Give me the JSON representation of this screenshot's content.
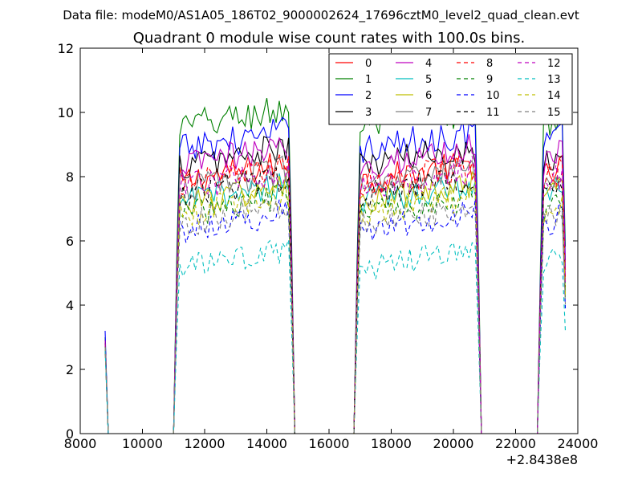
{
  "header": {
    "suptitle": "Data file: modeM0/AS1A05_186T02_9000002624_17696cztM0_level2_quad_clean.evt"
  },
  "chart_data": {
    "type": "line",
    "title": "Quadrant 0 module wise count rates with 100.0s bins.",
    "xlabel": "",
    "ylabel": "",
    "x_offset_label": "+2.8438e8",
    "xlim": [
      8000,
      24000
    ],
    "ylim": [
      0,
      12
    ],
    "xticks": [
      8000,
      10000,
      12000,
      14000,
      16000,
      18000,
      20000,
      22000,
      24000
    ],
    "xtick_labels": [
      "8000",
      "10000",
      "12000",
      "14000",
      "16000",
      "18000",
      "20000",
      "22000",
      "24000"
    ],
    "yticks": [
      0,
      2,
      4,
      6,
      8,
      10,
      12
    ],
    "ytick_labels": [
      "0",
      "2",
      "4",
      "6",
      "8",
      "10",
      "12"
    ],
    "grid": false,
    "legend": {
      "placement": "top-right",
      "columns": 4
    },
    "bin_width": 100,
    "orbit_segments": [
      {
        "start": 11100,
        "end": 14800
      },
      {
        "start": 16900,
        "end": 20800
      },
      {
        "start": 22800,
        "end": 23600
      }
    ],
    "initial_point": {
      "x": 8800
    },
    "series": [
      {
        "name": "0",
        "color": "#ff0000",
        "style": "solid",
        "level": 8.0,
        "first_value": 2.9
      },
      {
        "name": "1",
        "color": "#008000",
        "style": "solid",
        "level": 9.7,
        "first_value": 3.0
      },
      {
        "name": "2",
        "color": "#0000ff",
        "style": "solid",
        "level": 9.0,
        "first_value": 3.2
      },
      {
        "name": "3",
        "color": "#000000",
        "style": "solid",
        "level": 8.5,
        "first_value": 2.9
      },
      {
        "name": "4",
        "color": "#bf00bf",
        "style": "solid",
        "level": 8.5,
        "first_value": 2.9
      },
      {
        "name": "5",
        "color": "#00bfbf",
        "style": "solid",
        "level": 7.4,
        "first_value": 2.8
      },
      {
        "name": "6",
        "color": "#bfbf00",
        "style": "solid",
        "level": 7.3,
        "first_value": 2.8
      },
      {
        "name": "7",
        "color": "#808080",
        "style": "solid",
        "level": 7.8,
        "first_value": 2.8
      },
      {
        "name": "8",
        "color": "#ff0000",
        "style": "dashed",
        "level": 7.9,
        "first_value": 2.8
      },
      {
        "name": "9",
        "color": "#008000",
        "style": "dashed",
        "level": 7.0,
        "first_value": 2.7
      },
      {
        "name": "10",
        "color": "#0000ff",
        "style": "dashed",
        "level": 6.5,
        "first_value": 2.7
      },
      {
        "name": "11",
        "color": "#000000",
        "style": "dashed",
        "level": 7.6,
        "first_value": 2.8
      },
      {
        "name": "12",
        "color": "#bf00bf",
        "style": "dashed",
        "level": 7.8,
        "first_value": 2.8
      },
      {
        "name": "13",
        "color": "#00bfbf",
        "style": "dashed",
        "level": 5.3,
        "first_value": 2.6
      },
      {
        "name": "14",
        "color": "#bfbf00",
        "style": "dashed",
        "level": 7.0,
        "first_value": 2.7
      },
      {
        "name": "15",
        "color": "#808080",
        "style": "dashed",
        "level": 6.7,
        "first_value": 2.7
      }
    ]
  }
}
